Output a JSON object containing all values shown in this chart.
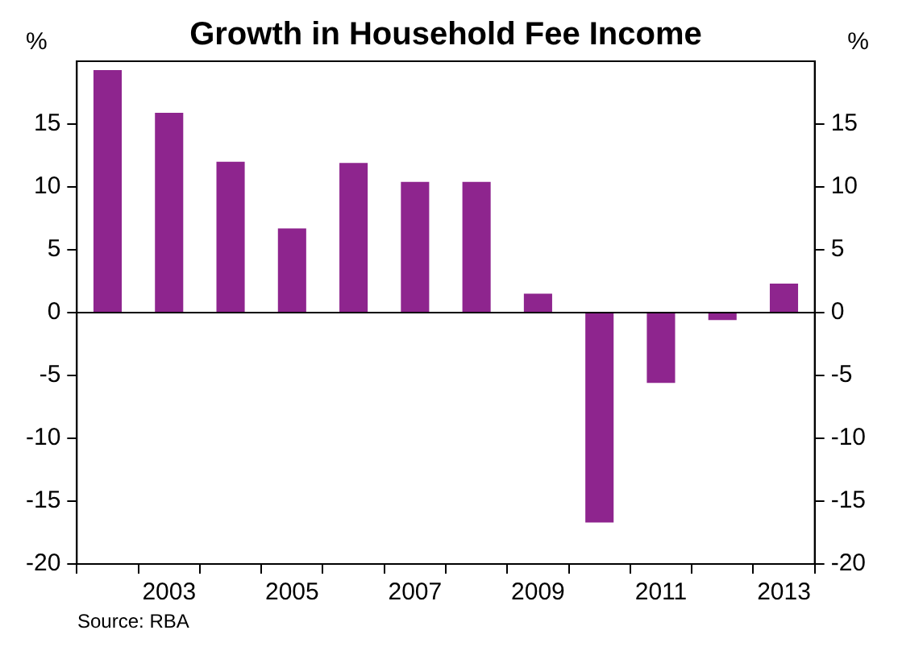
{
  "chart_data": {
    "type": "bar",
    "title": "Growth in Household Fee Income",
    "ylabel": "%",
    "y2label": "%",
    "categories": [
      null,
      "2003",
      null,
      "2005",
      null,
      "2007",
      null,
      "2009",
      null,
      "2011",
      null,
      "2013"
    ],
    "values": [
      19.3,
      15.9,
      12.0,
      6.7,
      11.9,
      10.4,
      10.4,
      1.5,
      -16.7,
      -5.6,
      -0.6,
      2.3
    ],
    "color": "#8e258e",
    "ylim": [
      -20,
      20
    ],
    "yticks": [
      -20,
      -15,
      -10,
      -5,
      0,
      5,
      10,
      15
    ],
    "y2lim": [
      -20,
      20
    ],
    "y2ticks": [
      -20,
      -15,
      -10,
      -5,
      0,
      5,
      10,
      15
    ],
    "ref_lines": [
      {
        "axis": "y",
        "value": 0,
        "color": "#000000"
      }
    ],
    "annotations": [
      "Source: RBA"
    ],
    "legend": false
  }
}
